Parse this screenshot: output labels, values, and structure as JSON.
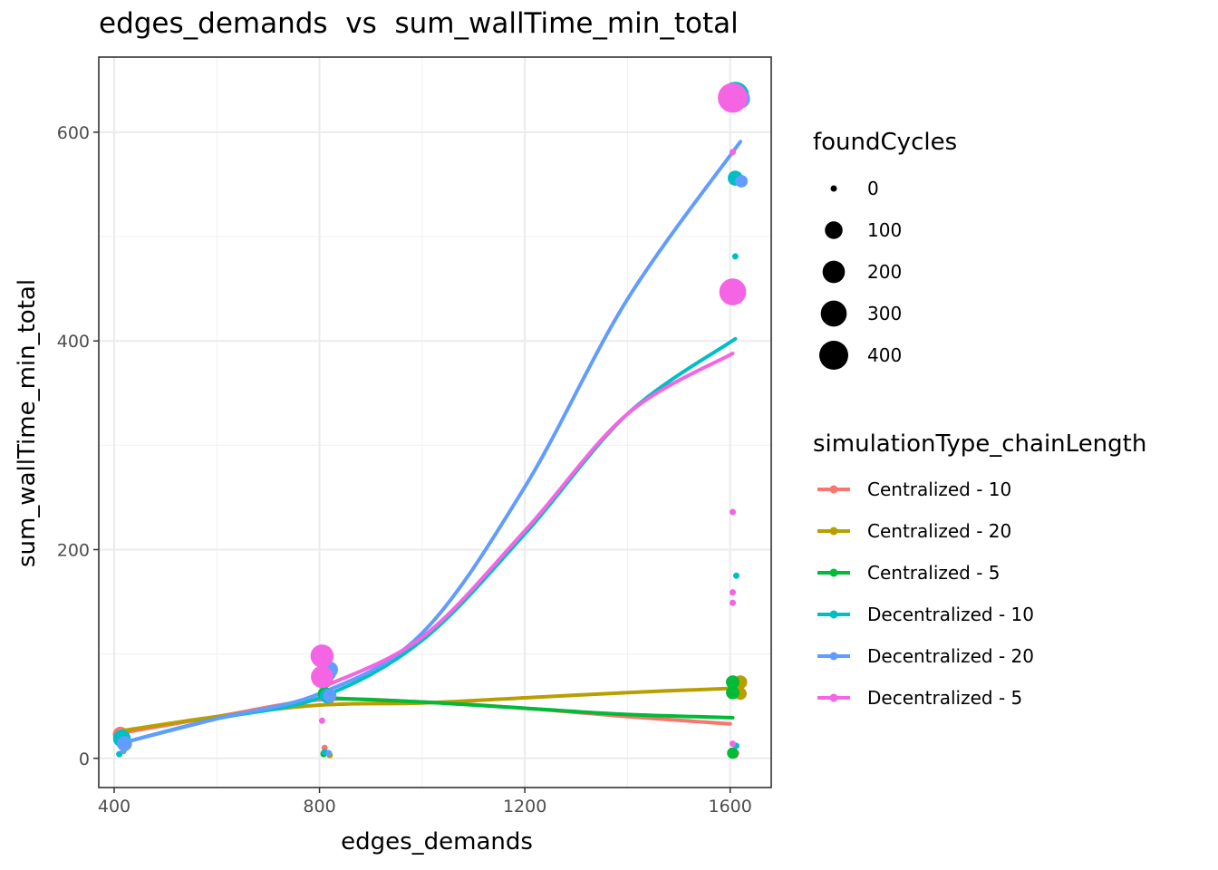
{
  "chart_data": {
    "type": "scatter",
    "title": "edges_demands  vs  sum_wallTime_min_total",
    "xlabel": "edges_demands",
    "ylabel": "sum_wallTime_min_total",
    "xlim": [
      370,
      1680
    ],
    "ylim": [
      -28,
      672
    ],
    "x_ticks": [
      400,
      800,
      1200,
      1600
    ],
    "y_ticks": [
      0,
      200,
      400,
      600
    ],
    "grid": true,
    "size_legend": {
      "title": "foundCycles",
      "entries": [
        {
          "label": "0",
          "value": 0
        },
        {
          "label": "100",
          "value": 100
        },
        {
          "label": "200",
          "value": 200
        },
        {
          "label": "300",
          "value": 300
        },
        {
          "label": "400",
          "value": 400
        }
      ]
    },
    "color_legend": {
      "title": "simulationType_chainLength",
      "placement": "right"
    },
    "series": [
      {
        "name": "Centralized - 10",
        "color": "#F8766D",
        "points": [
          {
            "x": 410,
            "y": 27,
            "size": 0
          },
          {
            "x": 412,
            "y": 23,
            "size": 60
          },
          {
            "x": 810,
            "y": 10,
            "size": 0
          },
          {
            "x": 808,
            "y": 5,
            "size": 0
          },
          {
            "x": 812,
            "y": 75,
            "size": 60
          },
          {
            "x": 1610,
            "y": 3,
            "size": 0
          },
          {
            "x": 1612,
            "y": 5,
            "size": 0
          },
          {
            "x": 1608,
            "y": 66,
            "size": 40
          }
        ],
        "smooth": [
          [
            410,
            24
          ],
          [
            600,
            40
          ],
          [
            800,
            56
          ],
          [
            1000,
            54
          ],
          [
            1200,
            48
          ],
          [
            1400,
            40
          ],
          [
            1600,
            33
          ]
        ]
      },
      {
        "name": "Centralized - 20",
        "color": "#B79F00",
        "points": [
          {
            "x": 420,
            "y": 26,
            "size": 0
          },
          {
            "x": 820,
            "y": 3,
            "size": 0
          },
          {
            "x": 818,
            "y": 58,
            "size": 30
          },
          {
            "x": 1620,
            "y": 73,
            "size": 40
          },
          {
            "x": 1620,
            "y": 62,
            "size": 30
          },
          {
            "x": 1612,
            "y": 68,
            "size": 60
          }
        ],
        "smooth": [
          [
            410,
            26
          ],
          [
            600,
            40
          ],
          [
            800,
            51
          ],
          [
            1000,
            53
          ],
          [
            1200,
            58
          ],
          [
            1400,
            63
          ],
          [
            1600,
            67
          ]
        ]
      },
      {
        "name": "Centralized - 5",
        "color": "#00BA38",
        "points": [
          {
            "x": 805,
            "y": 88,
            "size": 0
          },
          {
            "x": 810,
            "y": 62,
            "size": 40
          },
          {
            "x": 808,
            "y": 4,
            "size": 0
          },
          {
            "x": 1605,
            "y": 73,
            "size": 40
          },
          {
            "x": 1605,
            "y": 63,
            "size": 40
          },
          {
            "x": 1605,
            "y": 5,
            "size": 20
          }
        ],
        "smooth": [
          [
            805,
            58
          ],
          [
            1000,
            54
          ],
          [
            1200,
            48
          ],
          [
            1400,
            42
          ],
          [
            1605,
            39
          ]
        ]
      },
      {
        "name": "Decentralized - 10",
        "color": "#00BFC4",
        "points": [
          {
            "x": 415,
            "y": 19,
            "size": 100
          },
          {
            "x": 410,
            "y": 4,
            "size": 0
          },
          {
            "x": 815,
            "y": 82,
            "size": 100
          },
          {
            "x": 815,
            "y": 60,
            "size": 60
          },
          {
            "x": 810,
            "y": 6,
            "size": 0
          },
          {
            "x": 1610,
            "y": 635,
            "size": 360
          },
          {
            "x": 1610,
            "y": 556,
            "size": 60
          },
          {
            "x": 1610,
            "y": 481,
            "size": 0
          },
          {
            "x": 1612,
            "y": 175,
            "size": 0
          },
          {
            "x": 1612,
            "y": 12,
            "size": 0
          }
        ],
        "smooth": [
          [
            410,
            14
          ],
          [
            600,
            38
          ],
          [
            800,
            58
          ],
          [
            1000,
            113
          ],
          [
            1200,
            215
          ],
          [
            1400,
            330
          ],
          [
            1610,
            402
          ]
        ]
      },
      {
        "name": "Decentralized - 20",
        "color": "#619CFF",
        "points": [
          {
            "x": 420,
            "y": 14,
            "size": 60
          },
          {
            "x": 418,
            "y": 7,
            "size": 0
          },
          {
            "x": 820,
            "y": 85,
            "size": 80
          },
          {
            "x": 820,
            "y": 60,
            "size": 40
          },
          {
            "x": 818,
            "y": 5,
            "size": 0
          },
          {
            "x": 1620,
            "y": 632,
            "size": 130
          },
          {
            "x": 1622,
            "y": 553,
            "size": 30
          }
        ],
        "smooth": [
          [
            410,
            14
          ],
          [
            600,
            38
          ],
          [
            800,
            62
          ],
          [
            1000,
            120
          ],
          [
            1200,
            260
          ],
          [
            1400,
            440
          ],
          [
            1620,
            591
          ]
        ]
      },
      {
        "name": "Decentralized - 5",
        "color": "#F564E3",
        "points": [
          {
            "x": 805,
            "y": 98,
            "size": 220
          },
          {
            "x": 805,
            "y": 78,
            "size": 200
          },
          {
            "x": 805,
            "y": 36,
            "size": 0
          },
          {
            "x": 1605,
            "y": 633,
            "size": 430
          },
          {
            "x": 1605,
            "y": 447,
            "size": 330
          },
          {
            "x": 1605,
            "y": 581,
            "size": 0
          },
          {
            "x": 1605,
            "y": 236,
            "size": 0
          },
          {
            "x": 1605,
            "y": 159,
            "size": 0
          },
          {
            "x": 1605,
            "y": 149,
            "size": 0
          },
          {
            "x": 1605,
            "y": 14,
            "size": 0
          }
        ],
        "smooth": [
          [
            805,
            68
          ],
          [
            1000,
            116
          ],
          [
            1200,
            218
          ],
          [
            1400,
            330
          ],
          [
            1605,
            388
          ]
        ]
      }
    ]
  }
}
